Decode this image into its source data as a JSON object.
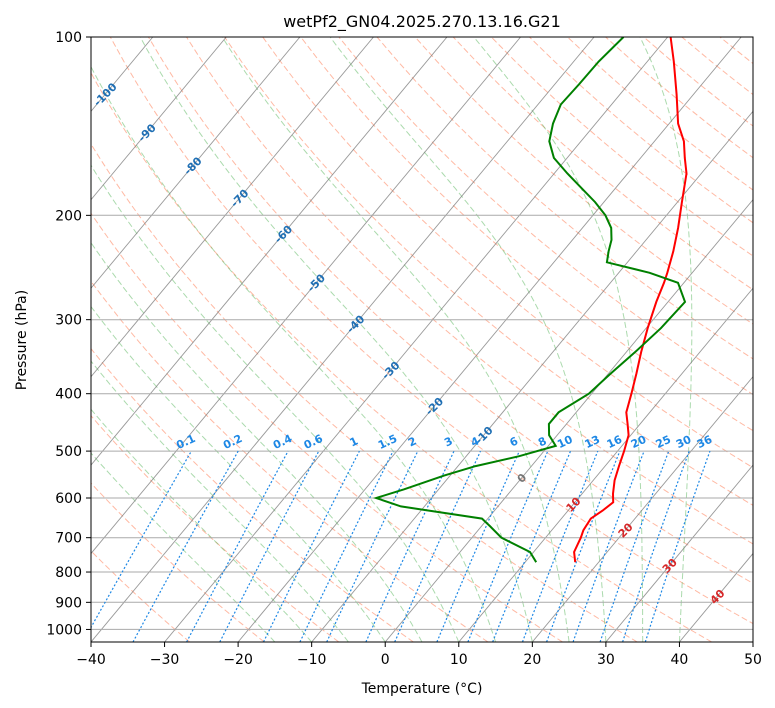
{
  "chart_data": {
    "type": "line",
    "diagram": "skew-t log-p",
    "title": "wetPf2_GN04.2025.270.13.16.G21",
    "xlabel": "Temperature (°C)",
    "ylabel": "Pressure (hPa)",
    "xlim": [
      -40,
      50
    ],
    "ylim": [
      1050,
      100
    ],
    "y_scale": "log",
    "x_ticks": [
      -40,
      -30,
      -20,
      -10,
      0,
      10,
      20,
      30,
      40,
      50
    ],
    "x_tick_labels": [
      "−40",
      "−30",
      "−20",
      "−10",
      "0",
      "10",
      "20",
      "30",
      "40",
      "50"
    ],
    "y_ticks": [
      100,
      200,
      300,
      400,
      500,
      600,
      700,
      800,
      900,
      1000
    ],
    "y_tick_labels": [
      "100",
      "200",
      "300",
      "400",
      "500",
      "600",
      "700",
      "800",
      "900",
      "1000"
    ],
    "grid": true,
    "colors": {
      "temperature": "#ff0000",
      "dewpoint": "#008000",
      "dry_adiabat": "#ff8a65",
      "moist_adiabat": "#66bb6a",
      "mixing_ratio": "#1e88e5",
      "isotherm": "#777777",
      "isobar": "#aaaaaa",
      "temp_label_cold": "#1f6fb4",
      "temp_label_warm": "#d62728",
      "temp_label_zero": "#777777"
    },
    "series": [
      {
        "name": "temperature",
        "p": [
          770,
          740,
          700,
          680,
          650,
          630,
          610,
          590,
          560,
          530,
          500,
          470,
          450,
          430,
          400,
          370,
          340,
          310,
          280,
          260,
          250,
          230,
          210,
          190,
          170,
          160,
          150,
          140,
          125,
          110,
          100
        ],
        "t": [
          16.8,
          15.5,
          14.8,
          14.3,
          14.0,
          14.7,
          15.2,
          14.2,
          12.9,
          11.9,
          10.9,
          9.7,
          8.3,
          6.8,
          5.4,
          3.8,
          2.0,
          0.2,
          -1.6,
          -2.7,
          -3.4,
          -5.0,
          -7.0,
          -9.4,
          -12.0,
          -14.0,
          -16.0,
          -18.8,
          -22.3,
          -26.4,
          -29.6
        ]
      },
      {
        "name": "dewpoint",
        "p": [
          770,
          740,
          700,
          670,
          650,
          620,
          600,
          580,
          550,
          530,
          510,
          490,
          470,
          450,
          430,
          400,
          370,
          340,
          310,
          280,
          260,
          250,
          240,
          230,
          220,
          210,
          200,
          190,
          180,
          170,
          160,
          150,
          140,
          130,
          120,
          110,
          100
        ],
        "t": [
          11.5,
          9.5,
          4.0,
          1.2,
          -0.8,
          -13.2,
          -17.5,
          -14.7,
          -10.8,
          -7.6,
          -2.8,
          1.0,
          -1.1,
          -2.4,
          -2.4,
          -0.4,
          0.3,
          1.2,
          2.0,
          2.3,
          -0.8,
          -5.8,
          -12.8,
          -13.8,
          -14.7,
          -16.1,
          -18.3,
          -21.2,
          -24.6,
          -28.2,
          -31.8,
          -34.3,
          -35.8,
          -36.9,
          -36.7,
          -36.6,
          -36.0
        ]
      }
    ],
    "isotherm_labels": [
      "-100",
      "-90",
      "-80",
      "-70",
      "-60",
      "-50",
      "-40",
      "-30",
      "-20",
      "-10",
      "0",
      "10",
      "20",
      "30",
      "40"
    ],
    "mixing_ratio_labels": [
      "0.1",
      "0.2",
      "0.4",
      "0.6",
      "1",
      "1.5",
      "2",
      "3",
      "4",
      "6",
      "8",
      "10",
      "13",
      "16",
      "20",
      "25",
      "30",
      "36"
    ]
  }
}
